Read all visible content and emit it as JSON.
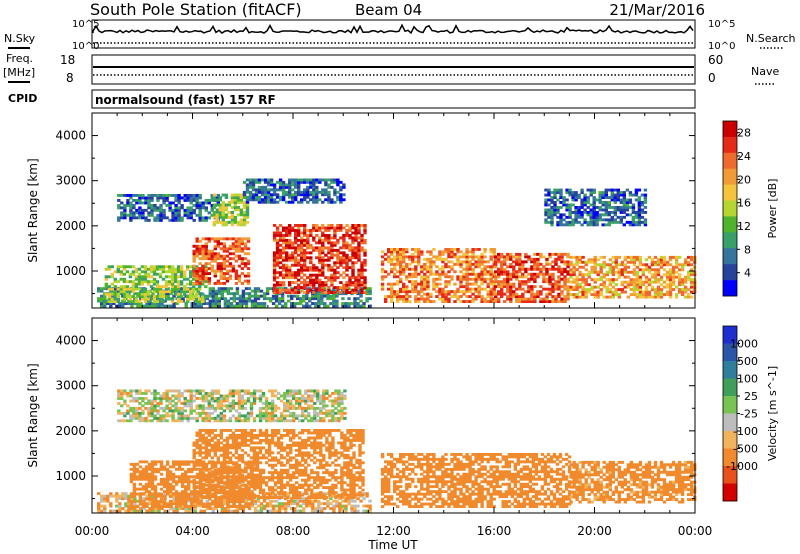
{
  "header": {
    "station": "South Pole Station (fitACF)",
    "beam": "Beam 04",
    "date": "21/Mar/2016"
  },
  "top_panel": {
    "left_label": "N.Sky",
    "right_label": "N.Search",
    "left_ticks": [
      "10^5",
      "10^0"
    ],
    "right_ticks": [
      "10^5",
      "10^0"
    ]
  },
  "freq_panel": {
    "left_label_line1": "Freq.",
    "left_label_line2": "[MHz]",
    "right_label": "Nave",
    "left_ticks": [
      "18",
      "8"
    ],
    "right_ticks": [
      "60",
      "0"
    ]
  },
  "cpid": {
    "label": "CPID",
    "value": "normalsound (fast) 157 RF"
  },
  "x_axis": {
    "label": "Time UT",
    "ticks": [
      "00:00",
      "04:00",
      "08:00",
      "12:00",
      "16:00",
      "20:00",
      "00:00"
    ]
  },
  "colors": {
    "power_scale": [
      "#0000ff",
      "#27439b",
      "#35749c",
      "#3aa06a",
      "#4fb32e",
      "#b4d62e",
      "#f4c43c",
      "#f29a34",
      "#ef6a2c",
      "#e62a18",
      "#cc0000"
    ],
    "velocity_scale": [
      "#d30000",
      "#e8501d",
      "#f08a2c",
      "#f1b45c",
      "#bdbdbd",
      "#79c254",
      "#3f9f5a",
      "#2f7f9c",
      "#2a55a8",
      "#1f2ecf"
    ]
  },
  "chart_data": [
    {
      "type": "heatmap",
      "title": "Power",
      "xlabel": "Time UT",
      "ylabel": "Slant Range [km]",
      "xlim": [
        0,
        24
      ],
      "ylim": [
        180,
        4500
      ],
      "yticks": [
        1000,
        2000,
        3000,
        4000
      ],
      "colorbar": {
        "label": "Power [dB]",
        "range": [
          0,
          30
        ],
        "ticks": [
          4,
          8,
          12,
          16,
          20,
          24,
          28
        ]
      },
      "regions": [
        {
          "t0": 0.2,
          "t1": 11.0,
          "r0": 200,
          "r1": 600,
          "value": 8
        },
        {
          "t0": 1.0,
          "t1": 5.0,
          "r0": 2100,
          "r1": 2700,
          "value": 6
        },
        {
          "t0": 4.8,
          "t1": 6.2,
          "r0": 2000,
          "r1": 2700,
          "value": 14
        },
        {
          "t0": 6.0,
          "t1": 10.0,
          "r0": 2500,
          "r1": 3000,
          "value": 6
        },
        {
          "t0": 0.5,
          "t1": 4.5,
          "r0": 300,
          "r1": 1100,
          "value": 14
        },
        {
          "t0": 4.0,
          "t1": 6.2,
          "r0": 700,
          "r1": 1700,
          "value": 24
        },
        {
          "t0": 7.2,
          "t1": 10.8,
          "r0": 500,
          "r1": 2000,
          "value": 26
        },
        {
          "t0": 11.5,
          "t1": 16.0,
          "r0": 300,
          "r1": 1500,
          "value": 22
        },
        {
          "t0": 16.0,
          "t1": 19.0,
          "r0": 300,
          "r1": 1400,
          "value": 24
        },
        {
          "t0": 19.0,
          "t1": 24.0,
          "r0": 400,
          "r1": 1300,
          "value": 20
        },
        {
          "t0": 18.0,
          "t1": 22.0,
          "r0": 2000,
          "r1": 2800,
          "value": 6
        }
      ]
    },
    {
      "type": "heatmap",
      "title": "Velocity",
      "xlabel": "Time UT",
      "ylabel": "Slant Range [km]",
      "xlim": [
        0,
        24
      ],
      "ylim": [
        180,
        4500
      ],
      "yticks": [
        1000,
        2000,
        3000,
        4000
      ],
      "colorbar": {
        "label": "Velocity [m s^-1]",
        "ticks": [
          "1000",
          "500",
          "100",
          "25",
          "-25",
          "-100",
          "-500",
          "-1000"
        ]
      },
      "regions": [
        {
          "t0": 0.2,
          "t1": 11.0,
          "r0": 200,
          "r1": 600,
          "value": -80
        },
        {
          "t0": 1.0,
          "t1": 10.0,
          "r0": 2200,
          "r1": 2900,
          "value": 0
        },
        {
          "t0": 1.5,
          "t1": 6.5,
          "r0": 300,
          "r1": 1300,
          "value": -250
        },
        {
          "t0": 4.0,
          "t1": 10.8,
          "r0": 500,
          "r1": 2000,
          "value": -300
        },
        {
          "t0": 11.5,
          "t1": 19.0,
          "r0": 300,
          "r1": 1500,
          "value": -350
        },
        {
          "t0": 19.0,
          "t1": 24.0,
          "r0": 400,
          "r1": 1300,
          "value": -200
        }
      ]
    }
  ]
}
